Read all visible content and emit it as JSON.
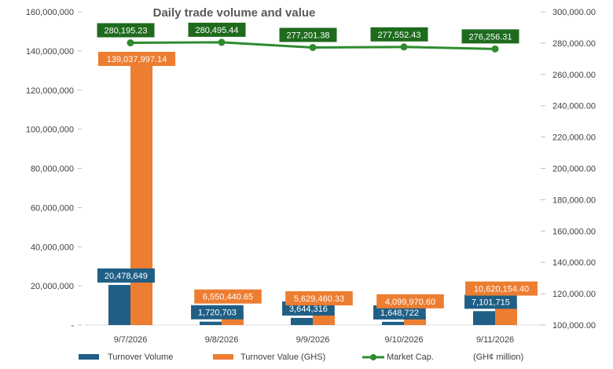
{
  "chart_data": {
    "type": "bar",
    "title": "Daily trade volume and value",
    "categories": [
      "9/7/2026",
      "9/8/2026",
      "9/9/2026",
      "9/10/2026",
      "9/11/2026"
    ],
    "series": [
      {
        "name": "Turnover Volume",
        "axis": "left",
        "color": "#1f5f86",
        "values": [
          20478649,
          1720703,
          3644316,
          1648722,
          7101715
        ],
        "labels": [
          "20,478,649",
          "1,720,703",
          "3,644,316",
          "1,648,722",
          "7,101,715"
        ]
      },
      {
        "name": "Turnover Value (GHS)",
        "axis": "left",
        "color": "#ed7d31",
        "values": [
          139037997.14,
          6550440.65,
          5629460.33,
          4099970.6,
          10620154.4
        ],
        "labels": [
          "139,037,997.14",
          "6,550,440.65",
          "5,629,460.33",
          "4,099,970.60",
          "10,620,154.40"
        ]
      },
      {
        "name": "Market Cap.",
        "axis": "right",
        "type": "line",
        "color": "#2e8b2e",
        "values": [
          280195.23,
          280495.44,
          277201.38,
          277552.43,
          276256.31
        ],
        "labels": [
          "280,195.23",
          "280,495.44",
          "277,201.38",
          "277,552.43",
          "276,256.31"
        ]
      }
    ],
    "left_axis": {
      "range": [
        0,
        160000000
      ],
      "ticks": [
        0,
        20000000,
        40000000,
        60000000,
        80000000,
        100000000,
        120000000,
        140000000,
        160000000
      ],
      "tick_labels": [
        "-",
        "20,000,000",
        "40,000,000",
        "60,000,000",
        "80,000,000",
        "100,000,000",
        "120,000,000",
        "140,000,000",
        "160,000,000"
      ]
    },
    "right_axis": {
      "range": [
        100000,
        300000
      ],
      "ticks": [
        100000,
        120000,
        140000,
        160000,
        180000,
        200000,
        220000,
        240000,
        260000,
        280000,
        300000
      ],
      "tick_labels": [
        "100,000.00",
        "120,000.00",
        "140,000.00",
        "160,000.00",
        "180,000.00",
        "200,000.00",
        "220,000.00",
        "240,000.00",
        "260,000.00",
        "280,000.00",
        "300,000.00"
      ]
    },
    "legend_note": "(GH¢ million)",
    "legend_position": "bottom",
    "grid": false
  }
}
